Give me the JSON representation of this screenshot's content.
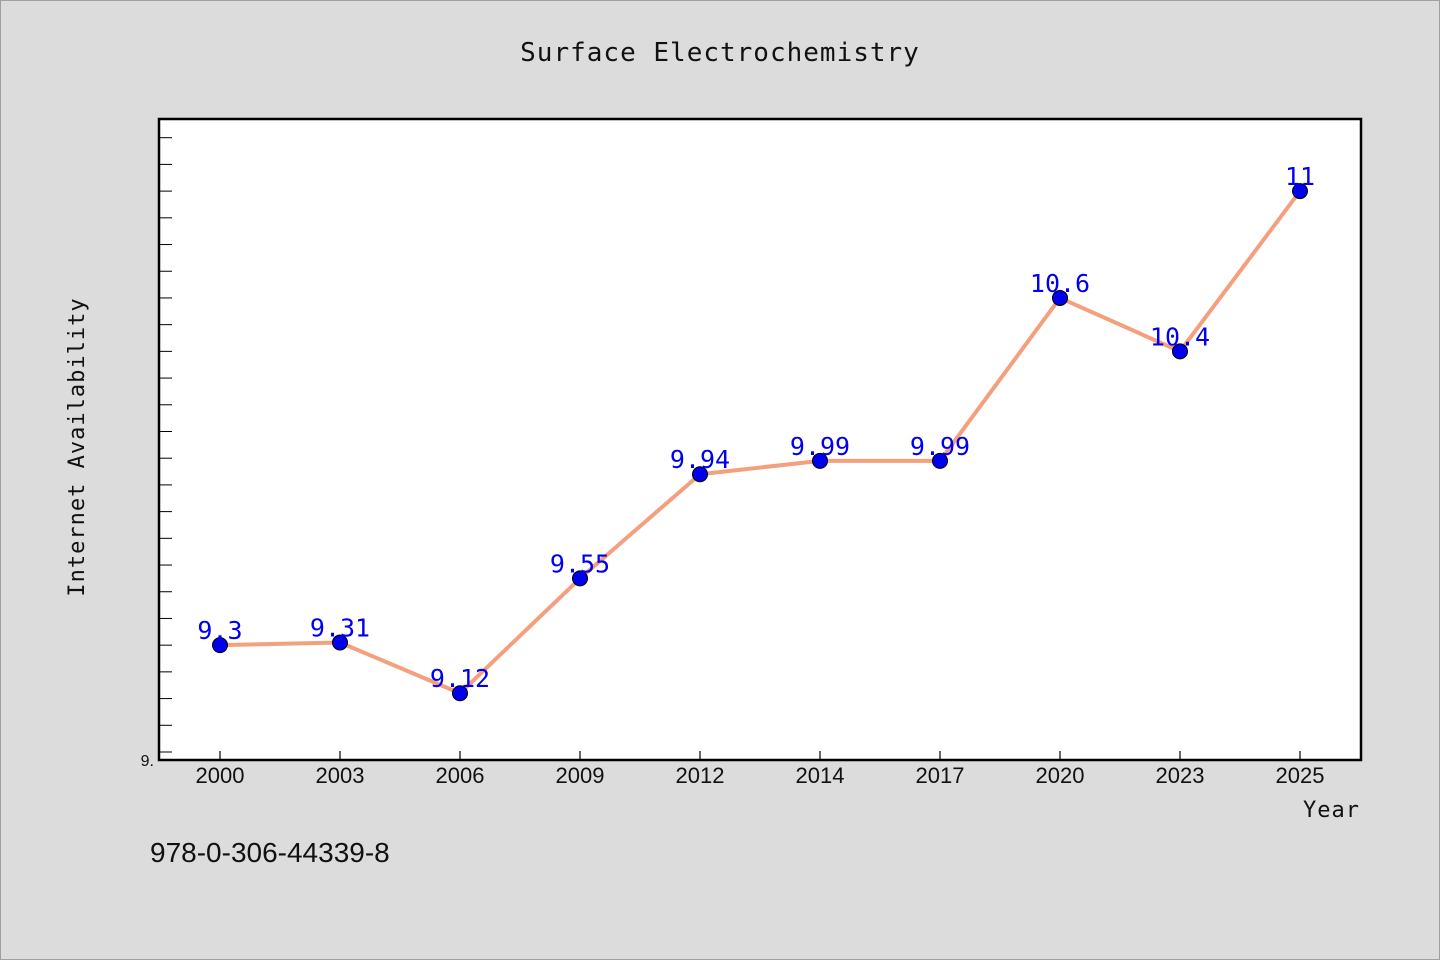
{
  "chart_data": {
    "type": "line",
    "title": "Surface Electrochemistry",
    "xlabel": "Year",
    "ylabel": "Internet Availability",
    "categories": [
      "2000",
      "2003",
      "2006",
      "2009",
      "2012",
      "2014",
      "2017",
      "2020",
      "2023",
      "2025"
    ],
    "series": [
      {
        "values": [
          9.3,
          9.31,
          9.12,
          9.55,
          9.94,
          9.99,
          9.99,
          10.6,
          10.4,
          11
        ],
        "labels": [
          "9.3",
          "9.31",
          "9.12",
          "9.55",
          "9.94",
          "9.99",
          "9.99",
          "10.6",
          "10.4",
          "11"
        ]
      }
    ],
    "ylim": [
      8.87,
      11.27
    ],
    "y_tick_step": 0.1,
    "y_axis_label_shown": "9.",
    "grid": false,
    "line_color": "#f4a07e",
    "marker_color": "#0000ee",
    "label_color": "#0000ee"
  },
  "footer": {
    "isbn": "978-0-306-44339-8"
  }
}
